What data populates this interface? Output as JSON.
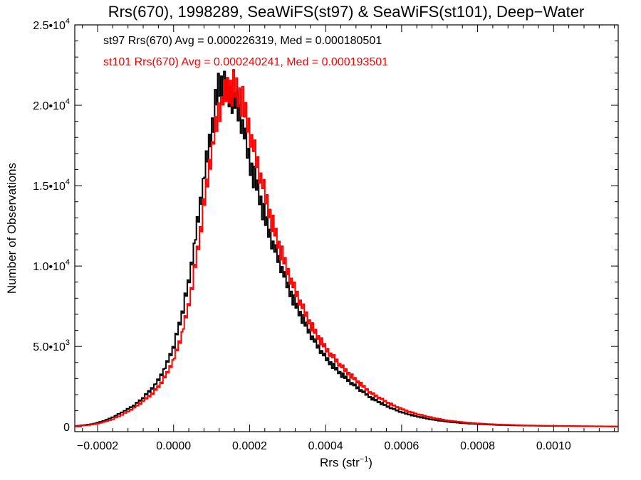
{
  "chart_data": {
    "type": "line",
    "title": "Rrs(670), 1998289, SeaWiFS(st97) & SeaWiFS(st101), Deep−Water",
    "xlabel": "Rrs (str",
    "xlabel_sup": "−1",
    "xlabel_close": ")",
    "ylabel": "Number of Observations",
    "xlim": [
      -0.00026,
      0.00117
    ],
    "ylim": [
      -300,
      25000
    ],
    "x_ticks": [
      {
        "value": -0.0002,
        "label": "−0.0002"
      },
      {
        "value": 0.0,
        "label": "0.0000"
      },
      {
        "value": 0.0002,
        "label": "0.0002"
      },
      {
        "value": 0.0004,
        "label": "0.0004"
      },
      {
        "value": 0.0006,
        "label": "0.0006"
      },
      {
        "value": 0.0008,
        "label": "0.0008"
      },
      {
        "value": 0.001,
        "label": "0.0010"
      }
    ],
    "y_ticks": [
      {
        "value": 0,
        "label": "0",
        "exp": ""
      },
      {
        "value": 5000,
        "label": "5.0•10",
        "exp": "3"
      },
      {
        "value": 10000,
        "label": "1.0•10",
        "exp": "4"
      },
      {
        "value": 15000,
        "label": "1.5•10",
        "exp": "4"
      },
      {
        "value": 20000,
        "label": "2.0•10",
        "exp": "4"
      },
      {
        "value": 25000,
        "label": "2.5•10",
        "exp": "4"
      }
    ],
    "grid": false,
    "step": true,
    "series": [
      {
        "name": "st97",
        "color": "#000000",
        "annotation": "st97 Rrs(670) Avg = 0.000226319, Med = 0.000180501",
        "points": [
          [
            -0.00026,
            50
          ],
          [
            -0.00022,
            150
          ],
          [
            -0.0002,
            250
          ],
          [
            -0.00018,
            400
          ],
          [
            -0.00016,
            600
          ],
          [
            -0.00014,
            850
          ],
          [
            -0.00012,
            1100
          ],
          [
            -0.0001,
            1400
          ],
          [
            -8e-05,
            1800
          ],
          [
            -6e-05,
            2300
          ],
          [
            -4e-05,
            2900
          ],
          [
            -2e-05,
            3800
          ],
          [
            0.0,
            5000
          ],
          [
            2e-05,
            6800
          ],
          [
            4e-05,
            9000
          ],
          [
            6e-05,
            12200
          ],
          [
            8e-05,
            15500
          ],
          [
            0.0001,
            18500
          ],
          [
            0.00012,
            21500
          ],
          [
            0.00014,
            20800
          ],
          [
            0.00016,
            20400
          ],
          [
            0.00018,
            19000
          ],
          [
            0.0002,
            16500
          ],
          [
            0.00022,
            15000
          ],
          [
            0.00024,
            13000
          ],
          [
            0.00026,
            11500
          ],
          [
            0.00028,
            10200
          ],
          [
            0.0003,
            8800
          ],
          [
            0.00032,
            7700
          ],
          [
            0.00034,
            6700
          ],
          [
            0.00036,
            5800
          ],
          [
            0.00038,
            5000
          ],
          [
            0.0004,
            4300
          ],
          [
            0.00044,
            3300
          ],
          [
            0.00048,
            2500
          ],
          [
            0.00052,
            1800
          ],
          [
            0.00056,
            1300
          ],
          [
            0.0006,
            900
          ],
          [
            0.00064,
            650
          ],
          [
            0.00068,
            450
          ],
          [
            0.00072,
            320
          ],
          [
            0.00076,
            230
          ],
          [
            0.0008,
            170
          ],
          [
            0.00085,
            120
          ],
          [
            0.0009,
            90
          ],
          [
            0.001,
            50
          ],
          [
            0.00117,
            20
          ]
        ]
      },
      {
        "name": "st101",
        "color": "#ff0000",
        "annotation": "st101 Rrs(670) Avg = 0.000240241, Med = 0.000193501",
        "points": [
          [
            -0.00026,
            40
          ],
          [
            -0.00022,
            120
          ],
          [
            -0.0002,
            200
          ],
          [
            -0.00018,
            320
          ],
          [
            -0.00016,
            480
          ],
          [
            -0.00014,
            700
          ],
          [
            -0.00012,
            950
          ],
          [
            -0.0001,
            1250
          ],
          [
            -8e-05,
            1600
          ],
          [
            -6e-05,
            2000
          ],
          [
            -4e-05,
            2500
          ],
          [
            -2e-05,
            3200
          ],
          [
            0.0,
            4200
          ],
          [
            2e-05,
            5600
          ],
          [
            4e-05,
            7600
          ],
          [
            6e-05,
            10500
          ],
          [
            8e-05,
            13800
          ],
          [
            0.0001,
            17200
          ],
          [
            0.00012,
            19800
          ],
          [
            0.00014,
            21000
          ],
          [
            0.00016,
            21200
          ],
          [
            0.00018,
            20300
          ],
          [
            0.0002,
            18500
          ],
          [
            0.00022,
            16500
          ],
          [
            0.00024,
            14500
          ],
          [
            0.00026,
            12700
          ],
          [
            0.00028,
            11100
          ],
          [
            0.0003,
            9700
          ],
          [
            0.00032,
            8500
          ],
          [
            0.00034,
            7400
          ],
          [
            0.00036,
            6400
          ],
          [
            0.00038,
            5600
          ],
          [
            0.0004,
            4900
          ],
          [
            0.00044,
            3800
          ],
          [
            0.00048,
            2900
          ],
          [
            0.00052,
            2100
          ],
          [
            0.00056,
            1550
          ],
          [
            0.0006,
            1100
          ],
          [
            0.00064,
            800
          ],
          [
            0.00068,
            570
          ],
          [
            0.00072,
            400
          ],
          [
            0.00076,
            290
          ],
          [
            0.0008,
            210
          ],
          [
            0.00085,
            150
          ],
          [
            0.0009,
            110
          ],
          [
            0.001,
            60
          ],
          [
            0.00117,
            25
          ]
        ]
      }
    ]
  }
}
